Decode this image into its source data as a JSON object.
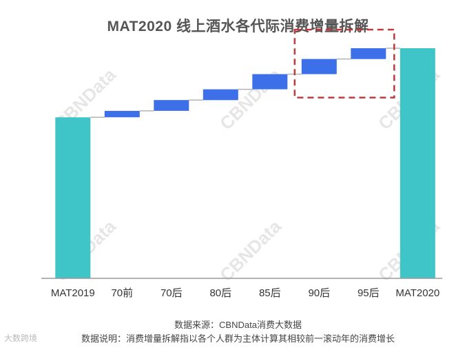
{
  "title": "MAT2020 线上酒水各代际消费增量拆解",
  "chart_data": {
    "type": "waterfall",
    "title": "MAT2020 线上酒水各代际消费增量拆解",
    "categories": [
      "MAT2019",
      "70前",
      "70后",
      "80后",
      "85后",
      "90后",
      "95后",
      "MAT2020"
    ],
    "series": [
      {
        "values": [
          100,
          4.0,
          6.7,
          6.7,
          9.4,
          9.4,
          6.7,
          142.9
        ],
        "kinds": [
          "total",
          "delta",
          "delta",
          "delta",
          "delta",
          "delta",
          "delta",
          "total"
        ]
      }
    ],
    "ylim": [
      0,
      160
    ],
    "grid": false,
    "highlight": {
      "categories": [
        "90后",
        "95后"
      ],
      "style": "dashed-box",
      "color": "#c0393b"
    },
    "colors": {
      "total": "#3fc4c7",
      "delta": "#3d6fe8",
      "connector": "#b3b3b3",
      "baseline": "#9a9a9a"
    }
  },
  "watermark": "CBNData",
  "footnote": {
    "source": "数据来源：CBNData消费大数据",
    "note": "数据说明：消费增量拆解指以各个人群为主体计算其相较前一滚动年的消费增长"
  },
  "logo": {
    "text": "大数跨境"
  }
}
